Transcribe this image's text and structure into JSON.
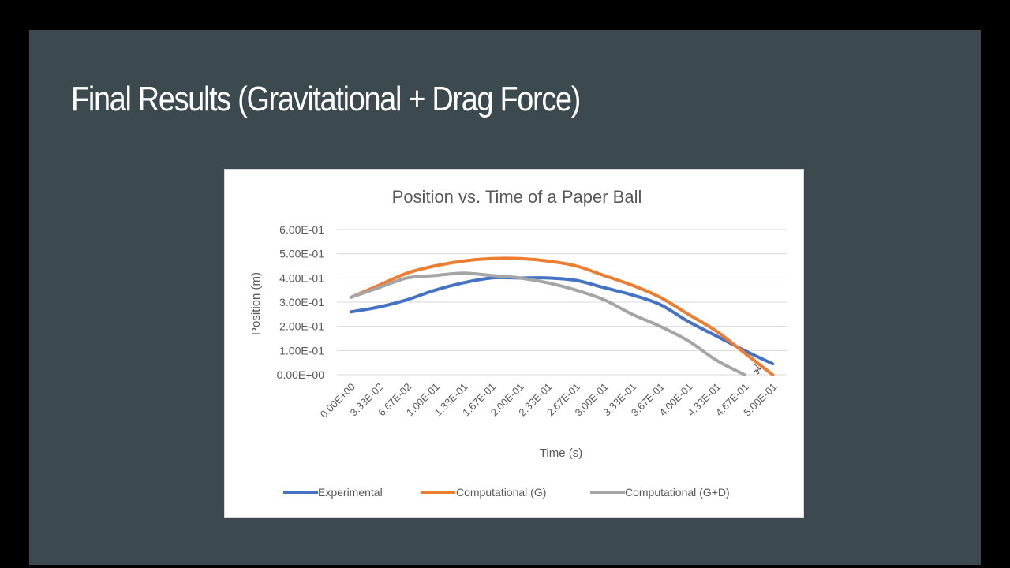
{
  "slide": {
    "title": "Final Results (Gravitational + Drag Force)",
    "background_color": "#3c4a4f",
    "title_color": "#ffffff"
  },
  "chart_data": {
    "type": "line",
    "title": "Position vs. Time of a Paper Ball",
    "xlabel": "Time (s)",
    "ylabel": "Position (m)",
    "categories": [
      "0.00E+00",
      "3.33E-02",
      "6.67E-02",
      "1.00E-01",
      "1.33E-01",
      "1.67E-01",
      "2.00E-01",
      "2.33E-01",
      "2.67E-01",
      "3.00E-01",
      "3.33E-01",
      "3.67E-01",
      "4.00E-01",
      "4.33E-01",
      "4.67E-01",
      "5.00E-01"
    ],
    "x": [
      0.0,
      0.0333,
      0.0667,
      0.1,
      0.133,
      0.167,
      0.2,
      0.233,
      0.267,
      0.3,
      0.333,
      0.367,
      0.4,
      0.433,
      0.467,
      0.5
    ],
    "ylim": [
      0,
      0.6
    ],
    "yticks": [
      0,
      0.1,
      0.2,
      0.3,
      0.4,
      0.5,
      0.6
    ],
    "ytick_labels": [
      "0.00E+00",
      "1.00E-01",
      "2.00E-01",
      "3.00E-01",
      "4.00E-01",
      "5.00E-01",
      "6.00E-01"
    ],
    "grid": true,
    "legend_position": "bottom",
    "series": [
      {
        "name": "Experimental",
        "color": "#4472c4",
        "values": [
          0.26,
          0.28,
          0.31,
          0.35,
          0.38,
          0.4,
          0.4,
          0.4,
          0.39,
          0.36,
          0.33,
          0.29,
          0.22,
          0.16,
          0.1,
          0.045
        ]
      },
      {
        "name": "Computational (G)",
        "color": "#ed7d31",
        "values": [
          0.32,
          0.37,
          0.42,
          0.45,
          0.47,
          0.48,
          0.48,
          0.47,
          0.45,
          0.41,
          0.37,
          0.32,
          0.25,
          0.18,
          0.09,
          0.0
        ]
      },
      {
        "name": "Computational (G+D)",
        "color": "#a5a5a5",
        "values": [
          0.32,
          0.36,
          0.4,
          0.41,
          0.42,
          0.41,
          0.4,
          0.38,
          0.35,
          0.31,
          0.25,
          0.2,
          0.14,
          0.06,
          0.0,
          null
        ]
      }
    ]
  }
}
